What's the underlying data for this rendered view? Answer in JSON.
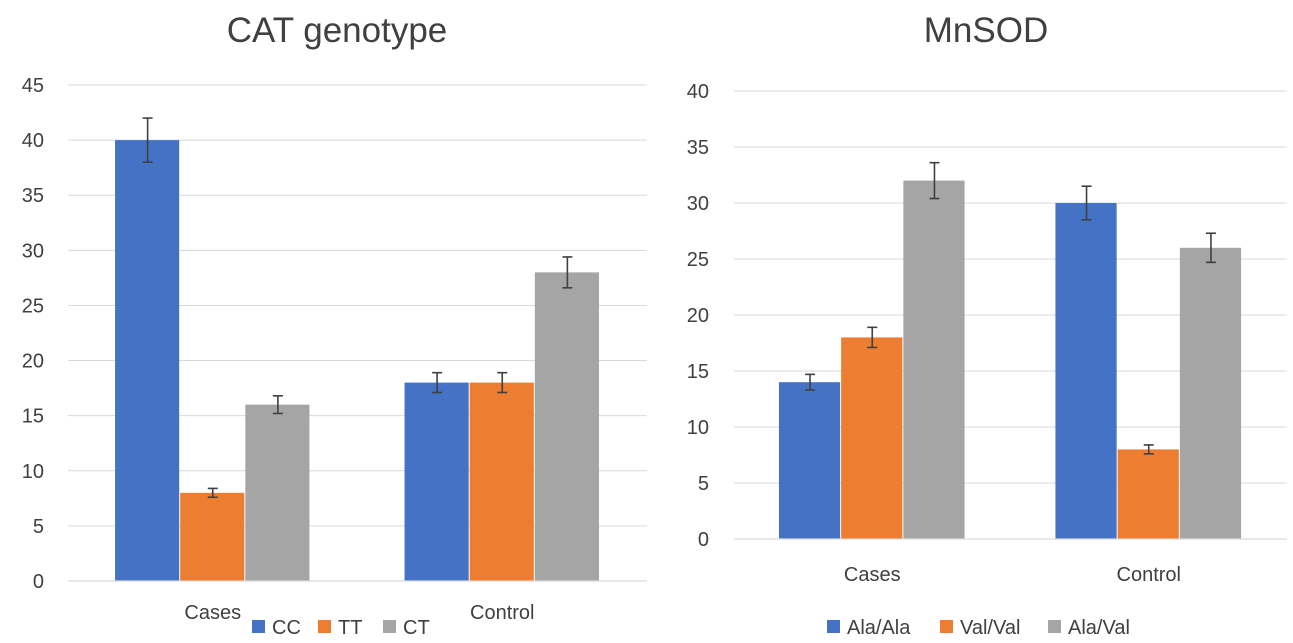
{
  "chart_data": [
    {
      "type": "bar",
      "title": "CAT genotype",
      "xlabel": "",
      "ylabel": "",
      "categories": [
        "Cases",
        "Control"
      ],
      "series": [
        {
          "name": "CC",
          "color": "#4472c4",
          "values": [
            40,
            18
          ],
          "errors": [
            2.0,
            0.9
          ]
        },
        {
          "name": "TT",
          "color": "#ed7d31",
          "values": [
            8,
            18
          ],
          "errors": [
            0.4,
            0.9
          ]
        },
        {
          "name": "CT",
          "color": "#a5a5a5",
          "values": [
            16,
            28
          ],
          "errors": [
            0.8,
            1.4
          ]
        }
      ],
      "ylim": [
        0,
        45
      ],
      "yticks": [
        0,
        5,
        10,
        15,
        20,
        25,
        30,
        35,
        40,
        45
      ],
      "grid": true,
      "error_bars": true,
      "legend_position": "bottom-center"
    },
    {
      "type": "bar",
      "title": "MnSOD",
      "xlabel": "",
      "ylabel": "",
      "categories": [
        "Cases",
        "Control"
      ],
      "series": [
        {
          "name": "Ala/Ala",
          "color": "#4472c4",
          "values": [
            14,
            30
          ],
          "errors": [
            0.7,
            1.5
          ]
        },
        {
          "name": "Val/Val",
          "color": "#ed7d31",
          "values": [
            18,
            8
          ],
          "errors": [
            0.9,
            0.4
          ]
        },
        {
          "name": "Ala/Val",
          "color": "#a5a5a5",
          "values": [
            32,
            26
          ],
          "errors": [
            1.6,
            1.3
          ]
        }
      ],
      "ylim": [
        0,
        40
      ],
      "yticks": [
        0,
        5,
        10,
        15,
        20,
        25,
        30,
        35,
        40
      ],
      "grid": true,
      "error_bars": true,
      "legend_position": "bottom-center"
    }
  ]
}
